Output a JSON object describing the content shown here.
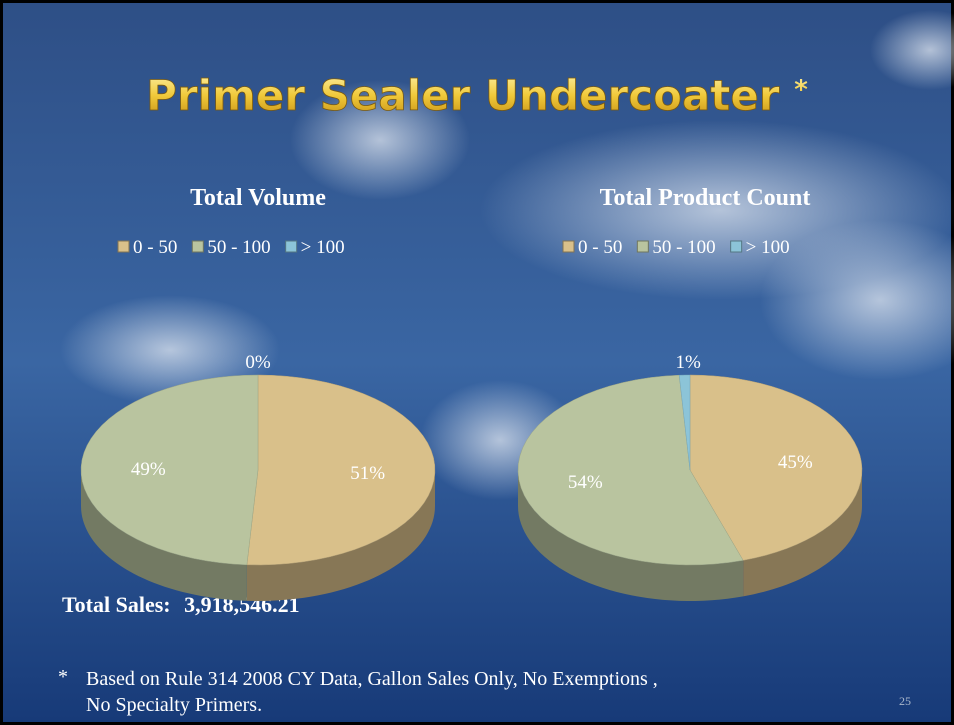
{
  "slide": {
    "title": "Primer Sealer Undercoater",
    "title_mark": "*",
    "total_sales": {
      "label": "Total Sales:",
      "value": "3,918,546.21"
    },
    "footnote": {
      "marker": "*",
      "text": "Based on Rule 314 2008 CY Data, Gallon Sales Only, No Exemptions , No Specialty Primers."
    },
    "page_number": "25"
  },
  "chart_data": [
    {
      "type": "pie",
      "title": "Total Volume",
      "categories": [
        "0 - 50",
        "50 - 100",
        "> 100"
      ],
      "values": [
        51,
        49,
        0
      ],
      "value_labels": [
        "51%",
        "49%",
        "0%"
      ],
      "colors": [
        "#d9c08a",
        "#b9c49f",
        "#8cc4d8"
      ],
      "legend": "top"
    },
    {
      "type": "pie",
      "title": "Total Product Count",
      "categories": [
        "0 - 50",
        "50 - 100",
        "> 100"
      ],
      "values": [
        45,
        54,
        1
      ],
      "value_labels": [
        "45%",
        "54%",
        "1%"
      ],
      "colors": [
        "#d9c08a",
        "#b9c49f",
        "#8cc4d8"
      ],
      "legend": "top"
    }
  ]
}
